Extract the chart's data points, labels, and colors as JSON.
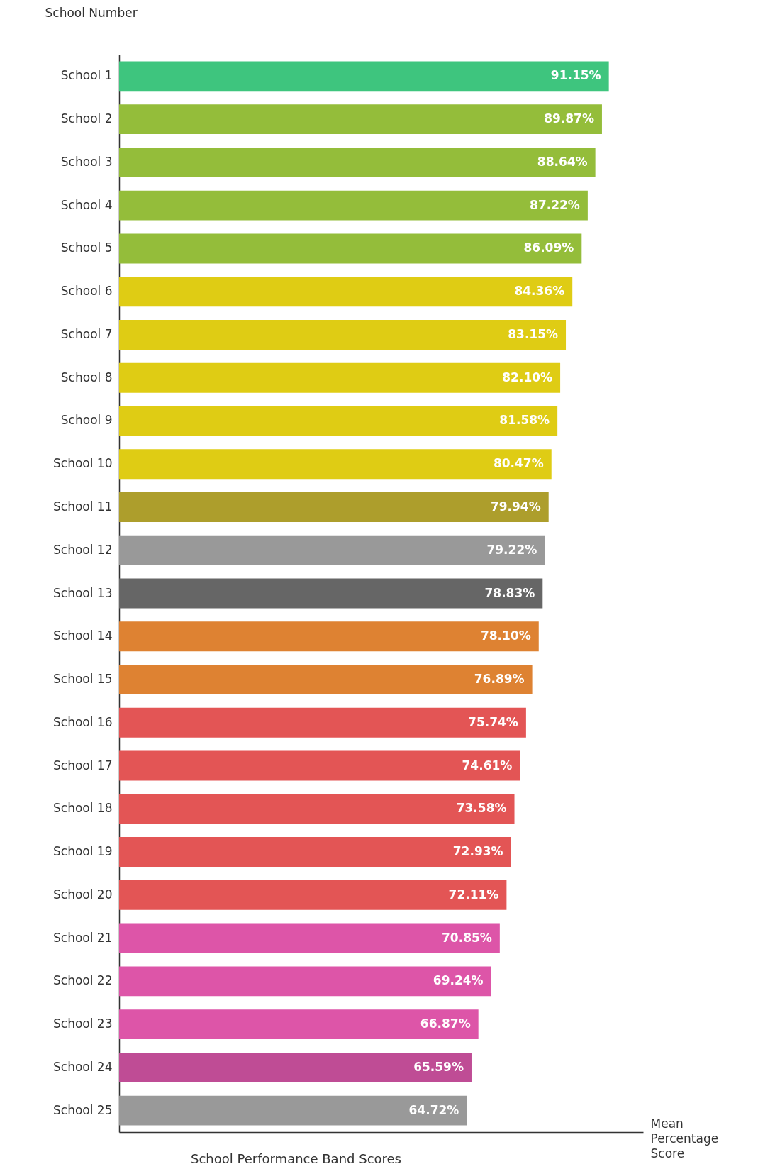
{
  "chart_data": {
    "type": "bar",
    "orientation": "horizontal",
    "title": "School Performance Band Scores",
    "xlabel": "Mean Percentage Score",
    "ylabel": "School Number",
    "categories": [
      "School 1",
      "School 2",
      "School 3",
      "School 4",
      "School 5",
      "School 6",
      "School 7",
      "School 8",
      "School 9",
      "School 10",
      "School 11",
      "School 12",
      "School 13",
      "School 14",
      "School 15",
      "School 16",
      "School 17",
      "School 18",
      "School 19",
      "School 20",
      "School 21",
      "School 22",
      "School 23",
      "School 24",
      "School 25"
    ],
    "values": [
      91.15,
      89.87,
      88.64,
      87.22,
      86.09,
      84.36,
      83.15,
      82.1,
      81.58,
      80.47,
      79.94,
      79.22,
      78.83,
      78.1,
      76.89,
      75.74,
      74.61,
      73.58,
      72.93,
      72.11,
      70.85,
      69.24,
      66.87,
      65.59,
      64.72
    ],
    "value_labels": [
      "91.15%",
      "89.87%",
      "88.64%",
      "87.22%",
      "86.09%",
      "84.36%",
      "83.15%",
      "82.10%",
      "81.58%",
      "80.47%",
      "79.94%",
      "79.22%",
      "78.83%",
      "78.10%",
      "76.89%",
      "75.74%",
      "74.61%",
      "73.58%",
      "72.93%",
      "72.11%",
      "70.85%",
      "69.24%",
      "66.87%",
      "65.59%",
      "64.72%"
    ],
    "colors": [
      "#3ec57e",
      "#94bd3a",
      "#94bd3a",
      "#94bd3a",
      "#94bd3a",
      "#dfcc14",
      "#dfcc14",
      "#dfcc14",
      "#dfcc14",
      "#dfcc14",
      "#ad9e2c",
      "#999999",
      "#666666",
      "#de8232",
      "#de8232",
      "#e35555",
      "#e35555",
      "#e35555",
      "#e35555",
      "#e35555",
      "#dd55a8",
      "#dd55a8",
      "#dd55a8",
      "#bf4c95",
      "#999999"
    ],
    "grid": false
  }
}
